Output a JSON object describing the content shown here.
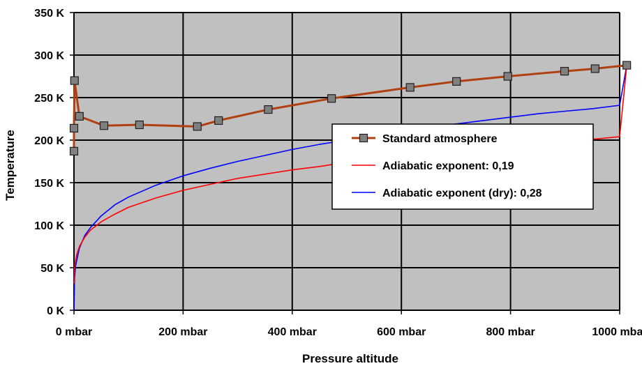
{
  "chart_data": {
    "type": "line",
    "title": "",
    "xlabel": "Pressure altitude",
    "ylabel": "Temperature",
    "xlim": [
      0,
      1000
    ],
    "ylim": [
      0,
      350
    ],
    "x_ticks": [
      "0 mbar",
      "200 mbar",
      "400 mbar",
      "600 mbar",
      "800 mbar",
      "1000 mbar"
    ],
    "y_ticks": [
      "0 K",
      "50 K",
      "100 K",
      "150 K",
      "200 K",
      "250 K",
      "300 K",
      "350 K"
    ],
    "grid": true,
    "plot_background": "#c0c0c0",
    "legend_position": "right",
    "series": [
      {
        "name": "Standard atmosphere",
        "color": "#b04010",
        "marker": "square",
        "points": [
          [
            0,
            187
          ],
          [
            0,
            214
          ],
          [
            1,
            270
          ],
          [
            10,
            228
          ],
          [
            55,
            217
          ],
          [
            120,
            218
          ],
          [
            226,
            216
          ],
          [
            265,
            223
          ],
          [
            356,
            236
          ],
          [
            472,
            249
          ],
          [
            616,
            262
          ],
          [
            701,
            269
          ],
          [
            795,
            275
          ],
          [
            899,
            281
          ],
          [
            955,
            284
          ],
          [
            1013,
            288
          ]
        ]
      },
      {
        "name": "Adiabatic exponent: 0,19",
        "color": "#ff0000",
        "marker": "none",
        "points": [
          [
            0.1,
            31
          ],
          [
            0.5,
            42
          ],
          [
            1,
            48
          ],
          [
            2,
            55
          ],
          [
            5,
            65
          ],
          [
            10,
            75
          ],
          [
            20,
            86
          ],
          [
            30,
            94
          ],
          [
            50,
            104
          ],
          [
            75,
            113
          ],
          [
            100,
            121
          ],
          [
            150,
            132
          ],
          [
            200,
            141
          ],
          [
            250,
            148
          ],
          [
            300,
            155
          ],
          [
            350,
            160
          ],
          [
            400,
            165
          ],
          [
            450,
            169
          ],
          [
            500,
            174
          ],
          [
            550,
            177
          ],
          [
            600,
            181
          ],
          [
            650,
            184
          ],
          [
            700,
            188
          ],
          [
            750,
            191
          ],
          [
            800,
            194
          ],
          [
            850,
            196
          ],
          [
            900,
            199
          ],
          [
            950,
            201
          ],
          [
            1000,
            204
          ],
          [
            1013,
            288
          ]
        ]
      },
      {
        "name": "Adiabatic exponent (dry): 0,28",
        "color": "#0000ff",
        "marker": "none",
        "points": [
          [
            0.1,
            0
          ],
          [
            1,
            37
          ],
          [
            3,
            52
          ],
          [
            10,
            73
          ],
          [
            20,
            88
          ],
          [
            30,
            97
          ],
          [
            50,
            111
          ],
          [
            75,
            124
          ],
          [
            100,
            133
          ],
          [
            150,
            147
          ],
          [
            200,
            158
          ],
          [
            250,
            167
          ],
          [
            300,
            175
          ],
          [
            350,
            182
          ],
          [
            400,
            189
          ],
          [
            450,
            195
          ],
          [
            500,
            200
          ],
          [
            550,
            206
          ],
          [
            600,
            210
          ],
          [
            650,
            215
          ],
          [
            700,
            219
          ],
          [
            750,
            223
          ],
          [
            800,
            227
          ],
          [
            850,
            231
          ],
          [
            900,
            234
          ],
          [
            950,
            237
          ],
          [
            1000,
            241
          ],
          [
            1013,
            288
          ]
        ]
      }
    ]
  }
}
